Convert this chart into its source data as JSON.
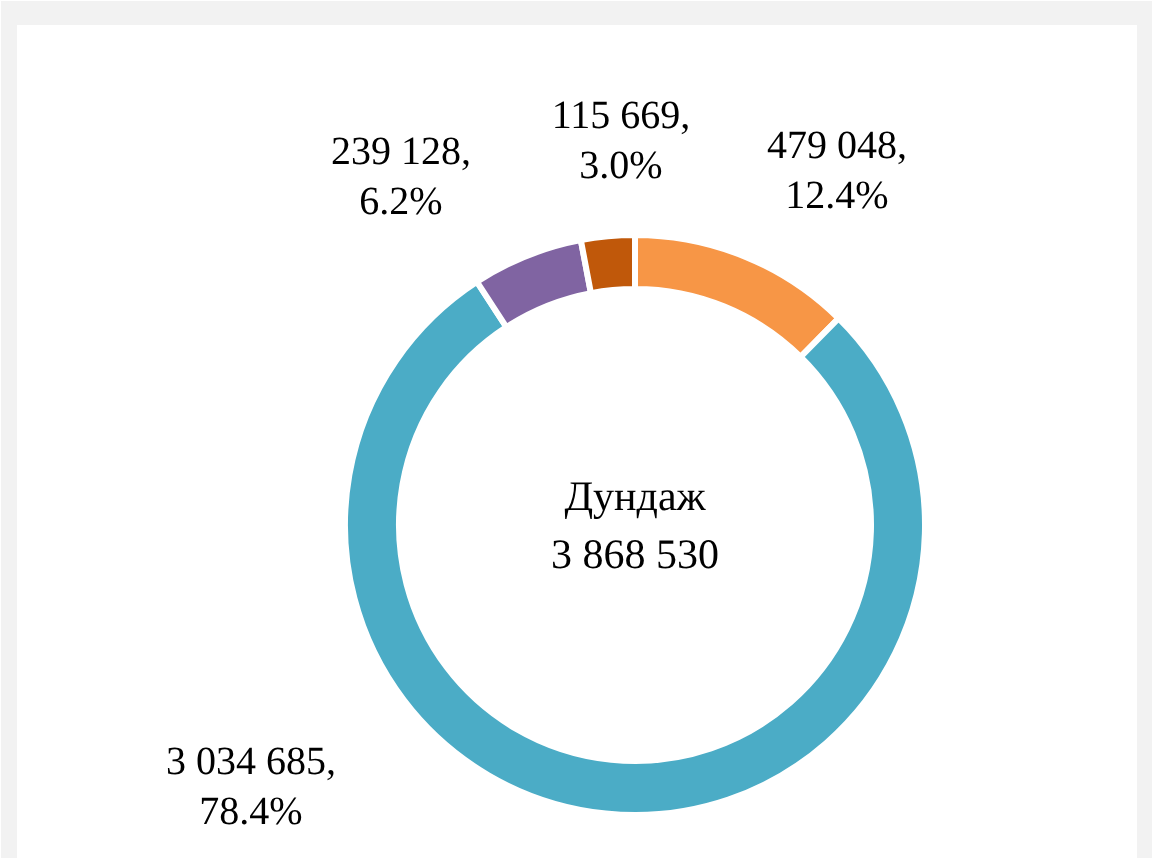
{
  "chart_data": {
    "type": "donut",
    "title": "Дундаж",
    "subtitle": "3 868 530",
    "categories": [
      null,
      null,
      null,
      null
    ],
    "values": [
      479048,
      3034685,
      239128,
      115669
    ],
    "colors": [
      "#f79646",
      "#4bacc6",
      "#8064a2",
      "#c0580a"
    ],
    "value_labels": [
      "479 048, 12.4%",
      "3 034 685, 78.4%",
      "239 128, 6.2%",
      "115 669, 3.0%"
    ]
  }
}
